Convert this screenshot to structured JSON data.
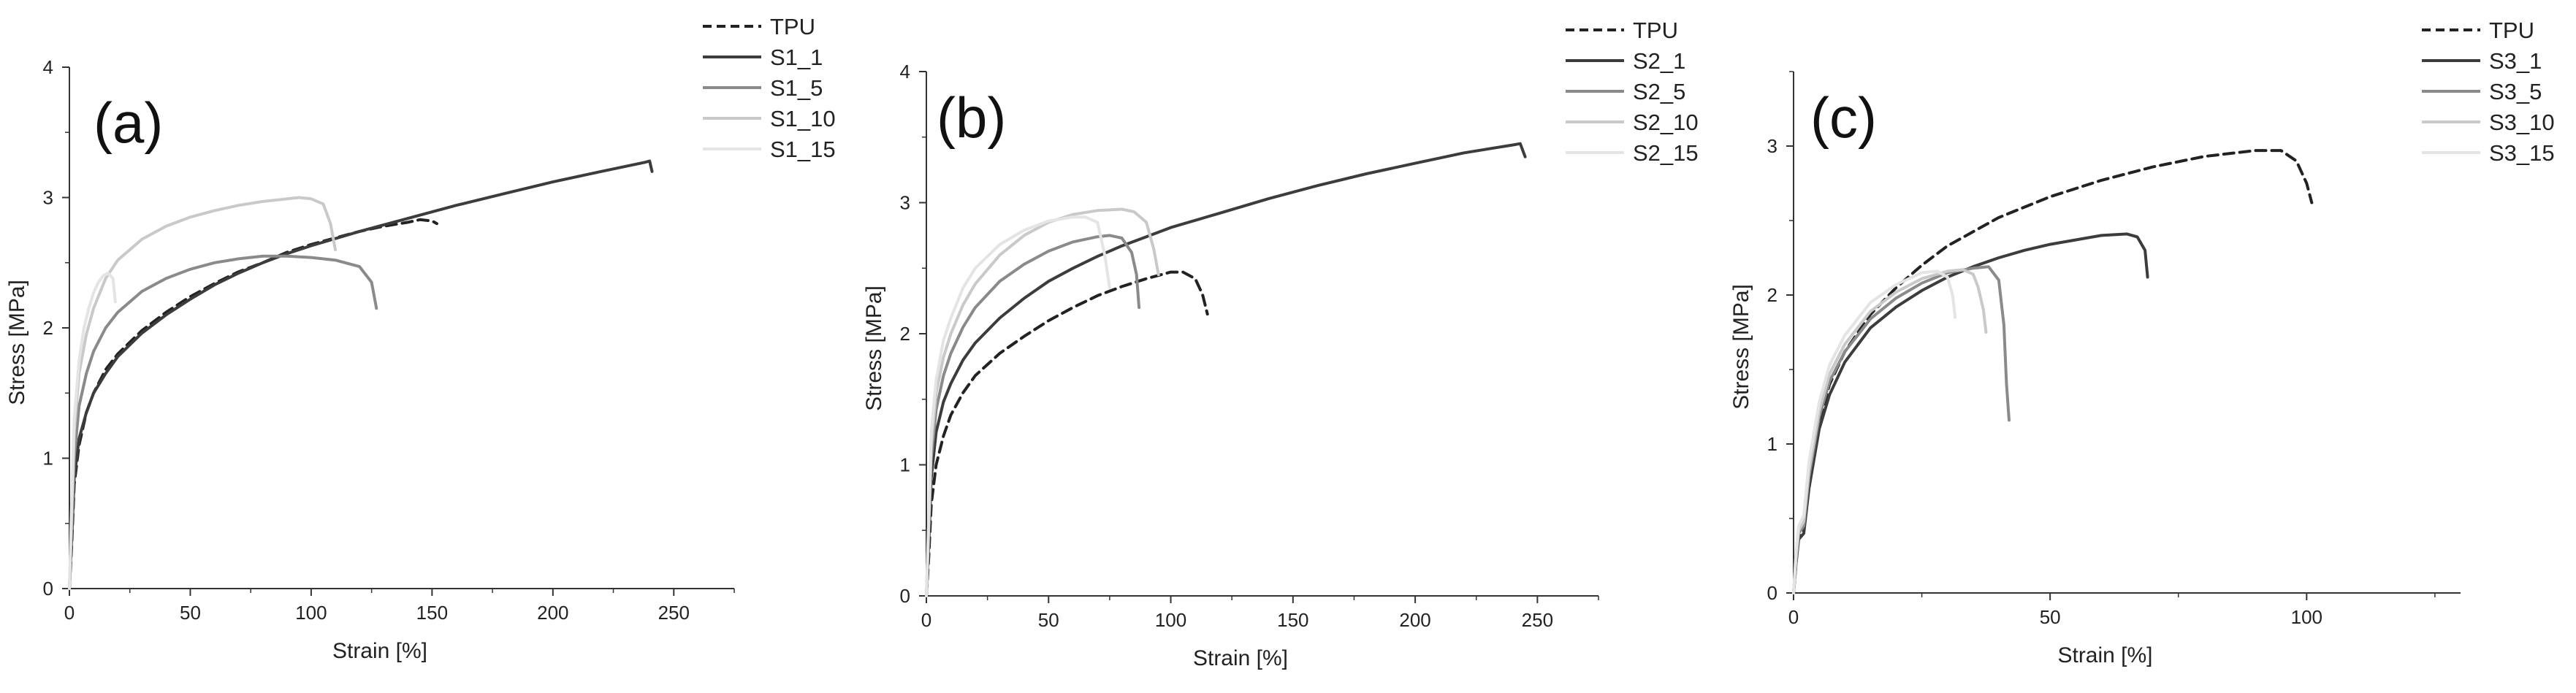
{
  "chart_data": [
    {
      "type": "line",
      "panel_label": "(a)",
      "xlabel": "Strain [%]",
      "ylabel": "Stress [MPa]",
      "xlim": [
        0,
        275
      ],
      "ylim": [
        0,
        4
      ],
      "xticks": [
        0,
        50,
        100,
        150,
        200,
        250
      ],
      "yticks": [
        0,
        1,
        2,
        3,
        4
      ],
      "legend_position": "top-right outside",
      "series": [
        {
          "name": "TPU",
          "color": "#222222",
          "dash": "dashed",
          "x": [
            0,
            1,
            2,
            4,
            7,
            10,
            15,
            20,
            30,
            40,
            50,
            60,
            70,
            80,
            90,
            100,
            110,
            120,
            130,
            140,
            145,
            150,
            152
          ],
          "y": [
            0,
            0.35,
            0.8,
            1.1,
            1.35,
            1.5,
            1.68,
            1.8,
            1.98,
            2.12,
            2.24,
            2.34,
            2.43,
            2.5,
            2.58,
            2.64,
            2.69,
            2.74,
            2.78,
            2.81,
            2.83,
            2.82,
            2.8
          ]
        },
        {
          "name": "S1_1",
          "color": "#3c3c3c",
          "dash": "solid",
          "x": [
            0,
            1,
            2,
            4,
            7,
            10,
            15,
            20,
            30,
            40,
            50,
            60,
            70,
            80,
            90,
            100,
            120,
            140,
            160,
            180,
            200,
            220,
            238,
            240,
            241
          ],
          "y": [
            0,
            0.4,
            0.85,
            1.15,
            1.35,
            1.5,
            1.65,
            1.78,
            1.96,
            2.1,
            2.22,
            2.33,
            2.42,
            2.5,
            2.57,
            2.63,
            2.74,
            2.84,
            2.94,
            3.03,
            3.12,
            3.2,
            3.27,
            3.28,
            3.2
          ]
        },
        {
          "name": "S1_5",
          "color": "#8a8a8a",
          "dash": "solid",
          "x": [
            0,
            1,
            2,
            4,
            7,
            10,
            15,
            20,
            30,
            40,
            50,
            60,
            70,
            80,
            90,
            100,
            110,
            120,
            125,
            127
          ],
          "y": [
            0,
            0.5,
            1.0,
            1.4,
            1.65,
            1.82,
            2.0,
            2.12,
            2.28,
            2.38,
            2.45,
            2.5,
            2.53,
            2.55,
            2.55,
            2.54,
            2.52,
            2.47,
            2.35,
            2.15
          ]
        },
        {
          "name": "S1_10",
          "color": "#c9c9c9",
          "dash": "solid",
          "x": [
            0,
            1,
            2,
            4,
            7,
            10,
            15,
            20,
            30,
            40,
            50,
            60,
            70,
            80,
            90,
            95,
            100,
            105,
            108,
            110
          ],
          "y": [
            0,
            0.6,
            1.2,
            1.65,
            1.95,
            2.15,
            2.38,
            2.52,
            2.68,
            2.78,
            2.85,
            2.9,
            2.94,
            2.97,
            2.99,
            3.0,
            2.99,
            2.95,
            2.8,
            2.6
          ]
        },
        {
          "name": "S1_15",
          "color": "#e4e4e4",
          "dash": "solid",
          "x": [
            0,
            1,
            2,
            4,
            6,
            8,
            10,
            12,
            14,
            16,
            18,
            19
          ],
          "y": [
            0,
            0.7,
            1.3,
            1.75,
            2.0,
            2.15,
            2.27,
            2.35,
            2.4,
            2.42,
            2.38,
            2.2
          ]
        }
      ]
    },
    {
      "type": "line",
      "panel_label": "(b)",
      "xlabel": "Strain [%]",
      "ylabel": "Stress [MPa]",
      "xlim": [
        0,
        275
      ],
      "ylim": [
        0,
        4
      ],
      "xticks": [
        0,
        50,
        100,
        150,
        200,
        250
      ],
      "yticks": [
        0,
        1,
        2,
        3,
        4
      ],
      "legend_position": "top-right outside",
      "series": [
        {
          "name": "TPU",
          "color": "#222222",
          "dash": "dashed",
          "x": [
            0,
            1,
            2,
            4,
            7,
            10,
            15,
            20,
            30,
            40,
            50,
            60,
            70,
            80,
            90,
            100,
            105,
            110,
            113,
            115
          ],
          "y": [
            0,
            0.3,
            0.7,
            1.0,
            1.22,
            1.38,
            1.55,
            1.68,
            1.85,
            1.98,
            2.1,
            2.2,
            2.29,
            2.36,
            2.42,
            2.47,
            2.47,
            2.42,
            2.3,
            2.15
          ]
        },
        {
          "name": "S2_1",
          "color": "#3c3c3c",
          "dash": "solid",
          "x": [
            0,
            1,
            2,
            4,
            7,
            10,
            15,
            20,
            30,
            40,
            50,
            60,
            70,
            80,
            90,
            100,
            120,
            140,
            160,
            180,
            200,
            220,
            240,
            243,
            245
          ],
          "y": [
            0,
            0.4,
            0.9,
            1.25,
            1.48,
            1.62,
            1.8,
            1.93,
            2.12,
            2.27,
            2.4,
            2.5,
            2.59,
            2.67,
            2.74,
            2.81,
            2.92,
            3.03,
            3.13,
            3.22,
            3.3,
            3.38,
            3.44,
            3.45,
            3.35
          ]
        },
        {
          "name": "S2_5",
          "color": "#8a8a8a",
          "dash": "solid",
          "x": [
            0,
            1,
            2,
            4,
            7,
            10,
            15,
            20,
            30,
            40,
            50,
            60,
            70,
            75,
            80,
            84,
            86,
            87
          ],
          "y": [
            0,
            0.5,
            1.05,
            1.42,
            1.68,
            1.85,
            2.05,
            2.2,
            2.4,
            2.53,
            2.63,
            2.7,
            2.74,
            2.75,
            2.73,
            2.62,
            2.45,
            2.2
          ]
        },
        {
          "name": "S2_10",
          "color": "#c9c9c9",
          "dash": "solid",
          "x": [
            0,
            1,
            2,
            4,
            7,
            10,
            15,
            20,
            30,
            40,
            50,
            60,
            70,
            80,
            85,
            90,
            93,
            95
          ],
          "y": [
            0,
            0.55,
            1.15,
            1.55,
            1.82,
            2.0,
            2.22,
            2.38,
            2.6,
            2.75,
            2.85,
            2.91,
            2.94,
            2.95,
            2.93,
            2.85,
            2.65,
            2.45
          ]
        },
        {
          "name": "S2_15",
          "color": "#e4e4e4",
          "dash": "solid",
          "x": [
            0,
            1,
            2,
            4,
            7,
            10,
            15,
            20,
            30,
            40,
            50,
            60,
            65,
            70,
            73,
            75
          ],
          "y": [
            0,
            0.6,
            1.25,
            1.65,
            1.95,
            2.12,
            2.35,
            2.5,
            2.68,
            2.79,
            2.86,
            2.89,
            2.89,
            2.85,
            2.6,
            2.35
          ]
        }
      ]
    },
    {
      "type": "line",
      "panel_label": "(c)",
      "xlabel": "Strain [%]",
      "ylabel": "Stress [MPa]",
      "xlim": [
        0,
        130
      ],
      "ylim": [
        0,
        3.5
      ],
      "xticks": [
        0,
        50,
        100
      ],
      "yticks": [
        0,
        1,
        2,
        3
      ],
      "legend_position": "top-right outside",
      "series": [
        {
          "name": "TPU",
          "color": "#222222",
          "dash": "dashed",
          "x": [
            0,
            0.5,
            1,
            2,
            3,
            5,
            7,
            10,
            15,
            20,
            25,
            30,
            40,
            50,
            60,
            70,
            80,
            90,
            95,
            98,
            100,
            101
          ],
          "y": [
            0,
            0.2,
            0.38,
            0.42,
            0.75,
            1.15,
            1.4,
            1.62,
            1.87,
            2.05,
            2.2,
            2.33,
            2.52,
            2.66,
            2.77,
            2.86,
            2.93,
            2.97,
            2.97,
            2.9,
            2.75,
            2.62
          ]
        },
        {
          "name": "S3_1",
          "color": "#3c3c3c",
          "dash": "solid",
          "x": [
            0,
            0.5,
            1,
            2,
            3,
            5,
            7,
            10,
            15,
            20,
            25,
            30,
            35,
            40,
            45,
            50,
            55,
            60,
            65,
            67,
            68.5,
            69
          ],
          "y": [
            0,
            0.2,
            0.36,
            0.4,
            0.7,
            1.1,
            1.33,
            1.55,
            1.78,
            1.92,
            2.03,
            2.12,
            2.19,
            2.25,
            2.3,
            2.34,
            2.37,
            2.4,
            2.41,
            2.39,
            2.3,
            2.12
          ]
        },
        {
          "name": "S3_5",
          "color": "#8a8a8a",
          "dash": "solid",
          "x": [
            0,
            0.5,
            1,
            2,
            3,
            5,
            7,
            10,
            15,
            20,
            25,
            30,
            35,
            38,
            40,
            41,
            41.5,
            42
          ],
          "y": [
            0,
            0.22,
            0.4,
            0.45,
            0.78,
            1.18,
            1.42,
            1.62,
            1.84,
            1.98,
            2.08,
            2.15,
            2.18,
            2.19,
            2.1,
            1.8,
            1.4,
            1.16
          ]
        },
        {
          "name": "S3_10",
          "color": "#c9c9c9",
          "dash": "solid",
          "x": [
            0,
            0.5,
            1,
            2,
            3,
            5,
            7,
            10,
            15,
            20,
            25,
            30,
            33,
            35,
            36,
            37,
            37.5
          ],
          "y": [
            0,
            0.25,
            0.42,
            0.48,
            0.82,
            1.22,
            1.47,
            1.67,
            1.89,
            2.02,
            2.11,
            2.16,
            2.17,
            2.14,
            2.05,
            1.9,
            1.75
          ]
        },
        {
          "name": "S3_15",
          "color": "#e4e4e4",
          "dash": "solid",
          "x": [
            0,
            0.5,
            1,
            2,
            3,
            5,
            7,
            10,
            15,
            20,
            25,
            28,
            30,
            31,
            31.5
          ],
          "y": [
            0,
            0.28,
            0.45,
            0.52,
            0.88,
            1.28,
            1.53,
            1.73,
            1.95,
            2.07,
            2.15,
            2.16,
            2.12,
            2.0,
            1.85
          ]
        }
      ]
    }
  ]
}
